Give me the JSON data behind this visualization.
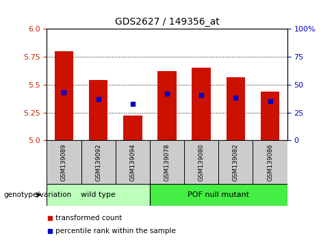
{
  "title": "GDS2627 / 149356_at",
  "samples": [
    "GSM139089",
    "GSM139092",
    "GSM139094",
    "GSM139078",
    "GSM139080",
    "GSM139082",
    "GSM139086"
  ],
  "transformed_counts": [
    5.8,
    5.54,
    5.22,
    5.62,
    5.65,
    5.57,
    5.44
  ],
  "percentile_ranks": [
    5.43,
    5.37,
    5.33,
    5.42,
    5.41,
    5.38,
    5.35
  ],
  "ylim": [
    5.0,
    6.0
  ],
  "yticks_left": [
    5.0,
    5.25,
    5.5,
    5.75,
    6.0
  ],
  "yticks_right_vals": [
    0,
    25,
    50,
    75,
    100
  ],
  "bar_color": "#cc1100",
  "dot_color": "#0000cc",
  "groups": [
    {
      "label": "wild type",
      "indices": [
        0,
        1,
        2
      ],
      "color": "#bbffbb"
    },
    {
      "label": "POF null mutant",
      "indices": [
        3,
        4,
        5,
        6
      ],
      "color": "#44ee44"
    }
  ],
  "genotype_label": "genotype/variation",
  "legend_items": [
    {
      "label": "transformed count",
      "color": "#cc1100"
    },
    {
      "label": "percentile rank within the sample",
      "color": "#0000cc"
    }
  ],
  "bar_width": 0.55,
  "bar_bottom": 5.0,
  "left_tick_color": "#cc2200",
  "right_tick_color": "#0000cc",
  "sample_box_color": "#cccccc",
  "fig_width": 4.88,
  "fig_height": 3.54
}
